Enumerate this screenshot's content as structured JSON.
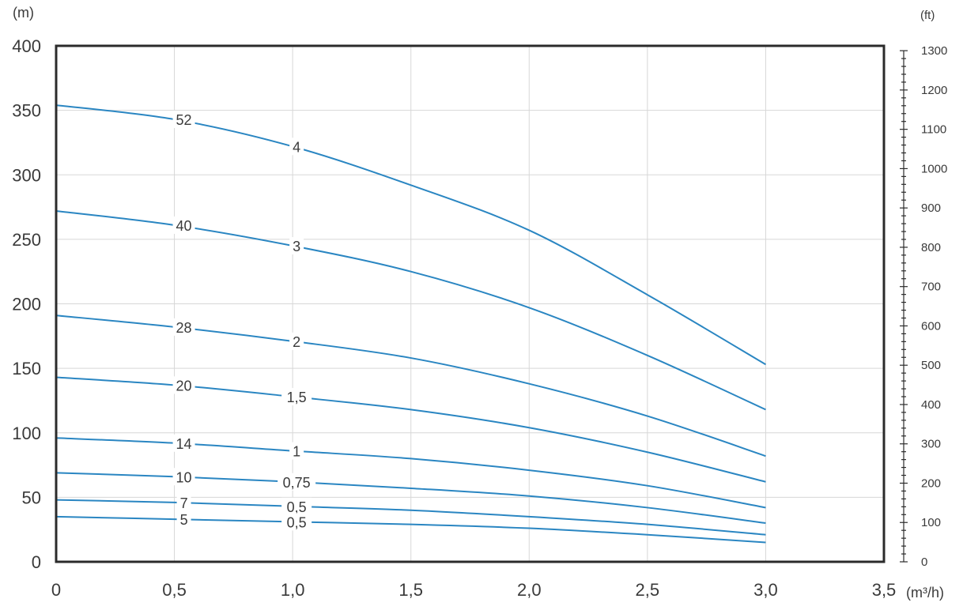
{
  "chart_data": {
    "type": "line",
    "title": "",
    "xlabel": "(m³/h)",
    "ylabel": "(m)",
    "ylabel_right": "(ft)",
    "xlim": [
      0,
      3.5
    ],
    "ylim": [
      0,
      400
    ],
    "ylim_right_ft": [
      0,
      1300
    ],
    "grid": true,
    "x_tick_values": [
      0,
      0.5,
      1.0,
      1.5,
      2.0,
      2.5,
      3.0,
      3.5
    ],
    "x_tick_labels": [
      "0",
      "0,5",
      "1,0",
      "1,5",
      "2,0",
      "2,5",
      "3,0",
      "3,5"
    ],
    "y_tick_values": [
      0,
      50,
      100,
      150,
      200,
      250,
      300,
      350,
      400
    ],
    "y_tick_labels": [
      "0",
      "50",
      "100",
      "150",
      "200",
      "250",
      "300",
      "350",
      "400"
    ],
    "y_right_tick_values": [
      0,
      100,
      200,
      300,
      400,
      500,
      600,
      700,
      800,
      900,
      1000,
      1100,
      1200,
      1300
    ],
    "y_right_tick_labels": [
      "0",
      "100",
      "200",
      "300",
      "400",
      "500",
      "600",
      "700",
      "800",
      "900",
      "1000",
      "1100",
      "1200",
      "1300"
    ],
    "x": [
      0,
      0.5,
      1.0,
      1.5,
      2.0,
      2.5,
      3.0
    ],
    "series": [
      {
        "stages": "52",
        "power": "4",
        "values": [
          354,
          343,
          322,
          292,
          257,
          207,
          153
        ],
        "label_at": [
          0.5,
          1.0
        ]
      },
      {
        "stages": "40",
        "power": "3",
        "values": [
          272,
          261,
          245,
          225,
          197,
          160,
          118
        ],
        "label_at": [
          0.5,
          1.0
        ]
      },
      {
        "stages": "28",
        "power": "2",
        "values": [
          191,
          182,
          171,
          158,
          138,
          113,
          82
        ],
        "label_at": [
          0.5,
          1.0
        ]
      },
      {
        "stages": "20",
        "power": "1,5",
        "values": [
          143,
          137,
          128,
          118,
          104,
          85,
          62
        ],
        "label_at": [
          0.5,
          1.0
        ]
      },
      {
        "stages": "14",
        "power": "1",
        "values": [
          96,
          92,
          86,
          80,
          71,
          59,
          42
        ],
        "label_at": [
          0.5,
          1.0
        ]
      },
      {
        "stages": "10",
        "power": "0,75",
        "values": [
          69,
          66,
          62,
          57,
          51,
          42,
          30
        ],
        "label_at": [
          0.5,
          1.0
        ]
      },
      {
        "stages": "7",
        "power": "0,5",
        "values": [
          48,
          46,
          43,
          40,
          35,
          29,
          21
        ],
        "label_at": [
          0.5,
          1.0
        ]
      },
      {
        "stages": "5",
        "power": "0,5",
        "values": [
          35,
          33,
          31,
          29,
          26,
          21,
          15
        ],
        "label_at": [
          0.5,
          1.0
        ]
      }
    ],
    "colors": {
      "curve": "#2a86c2",
      "frame": "#2b2b2b",
      "grid": "#d7d7d7",
      "text": "#3a3a3a"
    }
  }
}
